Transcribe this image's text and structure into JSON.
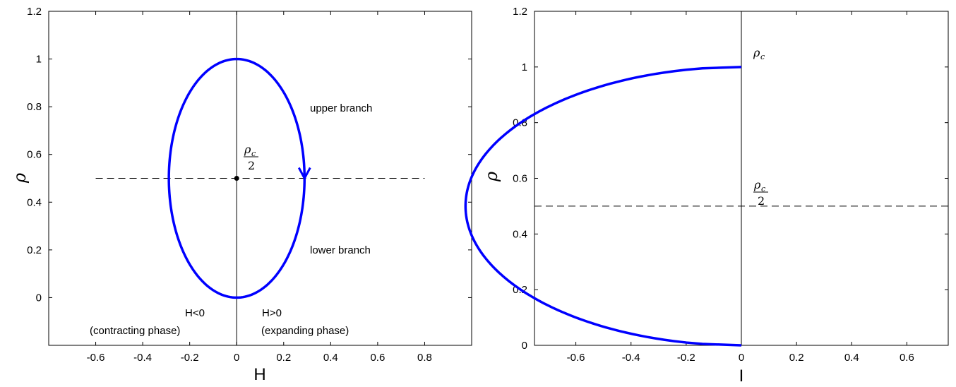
{
  "chart_data": [
    {
      "type": "line",
      "xlabel": "H",
      "ylabel": "ρ",
      "xlim": [
        -0.8,
        1.0
      ],
      "ylim": [
        -0.2,
        1.2
      ],
      "xticks": [
        "-0.6",
        "-0.4",
        "-0.2",
        "0",
        "0.2",
        "0.4",
        "0.6",
        "0.8"
      ],
      "yticks": [
        "0",
        "0.2",
        "0.4",
        "0.6",
        "0.8",
        "1",
        "1.2"
      ],
      "series": [
        {
          "shape": "ellipse",
          "center": [
            0,
            0.5
          ],
          "semi_axes": [
            0.2887,
            0.5
          ],
          "color": "#0000ff"
        }
      ],
      "reference_lines": [
        {
          "orientation": "horizontal",
          "y": 0.5,
          "x_range": [
            -0.6,
            0.8
          ],
          "style": "dashed"
        },
        {
          "orientation": "vertical",
          "x": 0,
          "style": "solid"
        }
      ],
      "point": {
        "x": 0,
        "y": 0.5
      },
      "arrow": {
        "x": 0.2887,
        "y": 0.5,
        "direction": "down"
      },
      "annotations": {
        "upper": "upper branch",
        "lower": "lower branch",
        "hneg": "H<0",
        "hneg_phase": "(contracting phase)",
        "hpos": "H>0",
        "hpos_phase": "(expanding phase)",
        "rho_symbol": "ρ",
        "rho_sub": "c",
        "denominator": "2"
      }
    },
    {
      "type": "line",
      "xlabel": "I",
      "ylabel": "ρ",
      "xlim": [
        -0.75,
        0.75
      ],
      "ylim": [
        0,
        1.2
      ],
      "xticks": [
        "-0.6",
        "-0.4",
        "-0.2",
        "0",
        "0.2",
        "0.4",
        "0.6"
      ],
      "yticks": [
        "0",
        "0.2",
        "0.4",
        "0.6",
        "0.8",
        "1",
        "1.2"
      ],
      "series": [
        {
          "shape": "parabola",
          "function": "I = -2*sqrt(rho*(1-rho))",
          "y_range": [
            0,
            1
          ],
          "color": "#0000ff"
        }
      ],
      "reference_lines": [
        {
          "orientation": "horizontal",
          "y": 0.5,
          "style": "dashed"
        },
        {
          "orientation": "vertical",
          "x": 0,
          "style": "solid"
        }
      ],
      "annotations": {
        "rho_symbol": "ρ",
        "rho_sub": "c",
        "denominator": "2"
      }
    }
  ]
}
